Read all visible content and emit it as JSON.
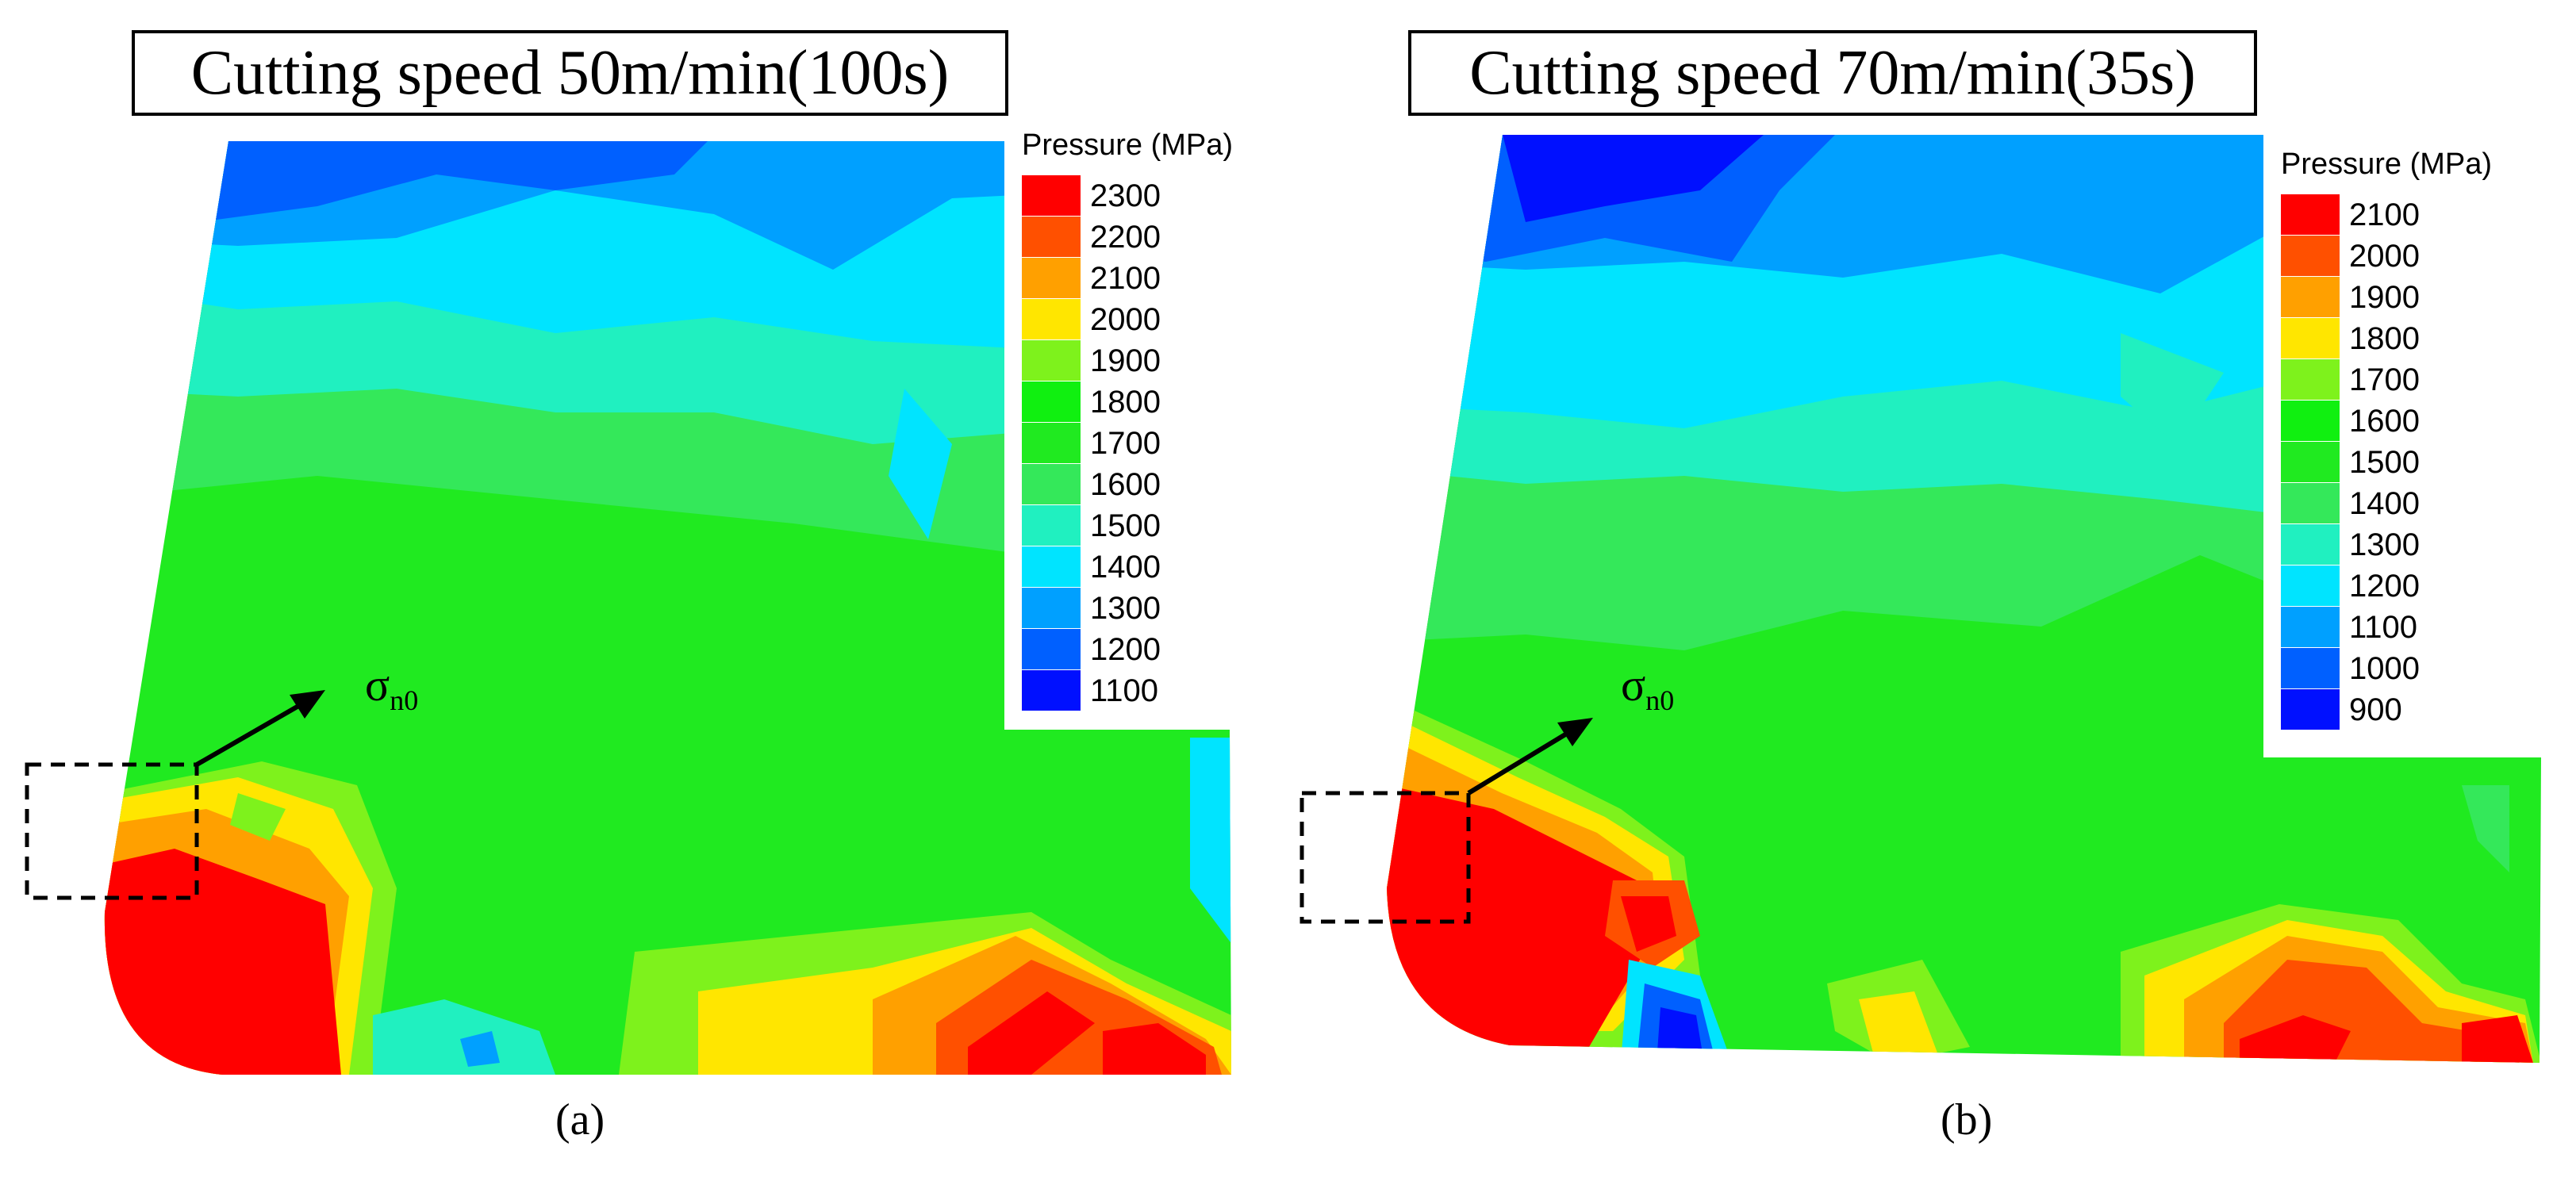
{
  "figure": {
    "panels": [
      {
        "title": "Cutting speed 50m/min(100s)",
        "caption": "(a)",
        "annotation_symbol": "σ",
        "annotation_subscript": "n0"
      },
      {
        "title": "Cutting speed 70m/min(35s)",
        "caption": "(b)",
        "annotation_symbol": "σ",
        "annotation_subscript": "n0"
      }
    ]
  },
  "chart_data": [
    {
      "type": "heatmap",
      "title": "Cutting speed 50m/min(100s)",
      "colorbar_title": "Pressure (MPa)",
      "levels": [
        2300,
        2200,
        2100,
        2000,
        1900,
        1800,
        1700,
        1600,
        1500,
        1400,
        1300,
        1200,
        1100
      ],
      "level_colors": [
        "#ff0000",
        "#ff5000",
        "#ffa000",
        "#ffe600",
        "#7ef21c",
        "#10f010",
        "#20ea20",
        "#34e85a",
        "#20f0c0",
        "#00e4ff",
        "#00a0ff",
        "#0060ff",
        "#0010ff"
      ],
      "dominant_region_value": 1700,
      "hot_spot_values": [
        2300,
        2300
      ],
      "annotation": "σ n0"
    },
    {
      "type": "heatmap",
      "title": "Cutting speed 70m/min(35s)",
      "colorbar_title": "Pressure (MPa)",
      "levels": [
        2100,
        2000,
        1900,
        1800,
        1700,
        1600,
        1500,
        1400,
        1300,
        1200,
        1100,
        1000,
        900
      ],
      "level_colors": [
        "#ff0000",
        "#ff5000",
        "#ffa000",
        "#ffe600",
        "#7ef21c",
        "#10f010",
        "#20ea20",
        "#34e85a",
        "#20f0c0",
        "#00e4ff",
        "#00a0ff",
        "#0060ff",
        "#0010ff"
      ],
      "dominant_region_value": 1500,
      "hot_spot_values": [
        2100,
        2100
      ],
      "annotation": "σ n0"
    }
  ]
}
